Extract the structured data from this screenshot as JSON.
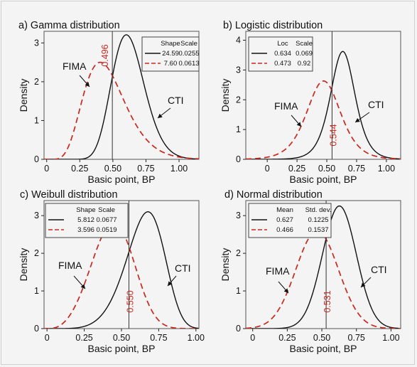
{
  "chart_data": [
    {
      "panel_title": "a) Gamma distribution",
      "type": "line",
      "xlabel": "Basic point, BP",
      "ylabel": "Density",
      "xlim": [
        -0.02,
        1.15
      ],
      "ylim": [
        0,
        3.3
      ],
      "xticks": [
        0,
        0.25,
        0.5,
        0.75,
        1.0
      ],
      "xticklabels": [
        "0",
        "0.25",
        "0.50",
        "0.75",
        "1.00"
      ],
      "yticks": [
        0,
        1,
        2,
        3
      ],
      "yticklabels": [
        "0",
        "1",
        "2",
        "3"
      ],
      "legend": {
        "placement": "top-right",
        "headers": [
          "Shape",
          "Scale"
        ]
      },
      "series": [
        {
          "name": "CTI",
          "distribution": "gamma",
          "params": [
            "24.59",
            "0.0255"
          ],
          "color": "#111111",
          "style": "solid"
        },
        {
          "name": "FIMA",
          "distribution": "gamma",
          "params": [
            "7.60",
            "0.0613"
          ],
          "color": "#c8281e",
          "style": "dashed"
        }
      ],
      "intersection": {
        "x": 0.496,
        "label": "0.496"
      },
      "annotations": [
        {
          "text": "FIMA",
          "series": "FIMA"
        },
        {
          "text": "CTI",
          "series": "CTI"
        }
      ]
    },
    {
      "panel_title": "b) Logistic distribution",
      "type": "line",
      "xlabel": "Basic point, BP",
      "ylabel": "Density",
      "xlim": [
        -0.18,
        1.12
      ],
      "ylim": [
        0,
        4.3
      ],
      "xticks": [
        0,
        0.25,
        0.5,
        0.75,
        1.0
      ],
      "xticklabels": [
        "0",
        "0.25",
        "0.50",
        "0.75",
        "1.00"
      ],
      "yticks": [
        0,
        1,
        2,
        3,
        4
      ],
      "yticklabels": [
        "0",
        "1",
        "2",
        "3",
        "4"
      ],
      "legend": {
        "placement": "top-left",
        "headers": [
          "Loc",
          "Scale"
        ]
      },
      "series": [
        {
          "name": "CTI",
          "distribution": "logistic",
          "params": [
            "0.634",
            "0.069"
          ],
          "color": "#111111",
          "style": "solid"
        },
        {
          "name": "FIMA",
          "distribution": "logistic",
          "params": [
            "0.473",
            "0.92"
          ],
          "color": "#c8281e",
          "style": "dashed"
        }
      ],
      "intersection": {
        "x": 0.544,
        "label": "0.544"
      },
      "annotations": [
        {
          "text": "FIMA",
          "series": "FIMA"
        },
        {
          "text": "CTI",
          "series": "CTI"
        }
      ]
    },
    {
      "panel_title": "c) Weibull distribution",
      "type": "line",
      "xlabel": "Basic point, BP",
      "ylabel": "Density",
      "xlim": [
        -0.02,
        1.02
      ],
      "ylim": [
        0,
        3.4
      ],
      "xticks": [
        0,
        0.25,
        0.5,
        0.75,
        1.0
      ],
      "xticklabels": [
        "0",
        "0.25",
        "0.50",
        "0.75",
        "1.00"
      ],
      "yticks": [
        0,
        1,
        2,
        3
      ],
      "yticklabels": [
        "0",
        "1",
        "2",
        "3"
      ],
      "legend": {
        "placement": "top-left",
        "headers": [
          "Shape",
          "Scale"
        ]
      },
      "series": [
        {
          "name": "CTI",
          "distribution": "weibull",
          "params": [
            "5.812",
            "0.0677"
          ],
          "color": "#111111",
          "style": "solid"
        },
        {
          "name": "FIMA",
          "distribution": "weibull",
          "params": [
            "3.596",
            "0.0519"
          ],
          "color": "#c8281e",
          "style": "dashed"
        }
      ],
      "intersection": {
        "x": 0.55,
        "label": "0.550"
      },
      "annotations": [
        {
          "text": "FIMA",
          "series": "FIMA"
        },
        {
          "text": "CTI",
          "series": "CTI"
        }
      ]
    },
    {
      "panel_title": "d) Normal distribution",
      "type": "line",
      "xlabel": "Basic point, BP",
      "ylabel": "Density",
      "xlim": [
        -0.05,
        1.07
      ],
      "ylim": [
        0,
        3.4
      ],
      "xticks": [
        0,
        0.25,
        0.5,
        0.75,
        1.0
      ],
      "xticklabels": [
        "0",
        "0.25",
        "0.50",
        "0.75",
        "1.00"
      ],
      "yticks": [
        0,
        1,
        2,
        3
      ],
      "yticklabels": [
        "0",
        "1",
        "2",
        "3"
      ],
      "legend": {
        "placement": "top-left",
        "headers": [
          "Mean",
          "Std. dev."
        ]
      },
      "series": [
        {
          "name": "CTI",
          "distribution": "normal",
          "params": [
            "0.627",
            "0.1225"
          ],
          "color": "#111111",
          "style": "solid"
        },
        {
          "name": "FIMA",
          "distribution": "normal",
          "params": [
            "0.466",
            "0.1537"
          ],
          "color": "#c8281e",
          "style": "dashed"
        }
      ],
      "intersection": {
        "x": 0.531,
        "label": "0.531"
      },
      "annotations": [
        {
          "text": "FIMA",
          "series": "FIMA"
        },
        {
          "text": "CTI",
          "series": "CTI"
        }
      ]
    }
  ]
}
